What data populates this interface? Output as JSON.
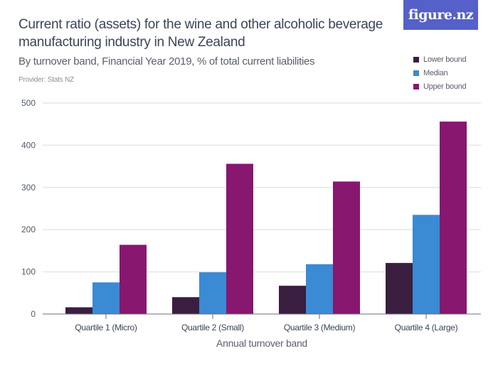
{
  "header": {
    "title": "Current ratio (assets) for the wine and other alcoholic beverage manufacturing industry in New Zealand",
    "subtitle": "By turnover band, Financial Year 2019, % of total current liabilities",
    "provider": "Provider: Stats NZ",
    "logo": "figure.nz",
    "logo_color": "#5560c8"
  },
  "chart_data": {
    "type": "bar",
    "title": "Current ratio (assets) for the wine and other alcoholic beverage manufacturing industry in New Zealand",
    "subtitle": "By turnover band, Financial Year 2019, % of total current liabilities",
    "xlabel": "Annual turnover band",
    "ylabel": "",
    "ylim": [
      0,
      500
    ],
    "yticks": [
      0,
      100,
      200,
      300,
      400,
      500
    ],
    "grid": true,
    "legend_position": "top-right",
    "categories": [
      "Quartile 1 (Micro)",
      "Quartile 2 (Small)",
      "Quartile 3 (Medium)",
      "Quartile 4 (Large)"
    ],
    "series": [
      {
        "name": "Lower bound",
        "color": "#3a1e3f",
        "values": [
          16,
          40,
          67,
          121
        ]
      },
      {
        "name": "Median",
        "color": "#3a8ad4",
        "values": [
          75,
          99,
          118,
          235
        ]
      },
      {
        "name": "Upper bound",
        "color": "#88176f",
        "values": [
          164,
          356,
          314,
          456
        ]
      }
    ]
  }
}
